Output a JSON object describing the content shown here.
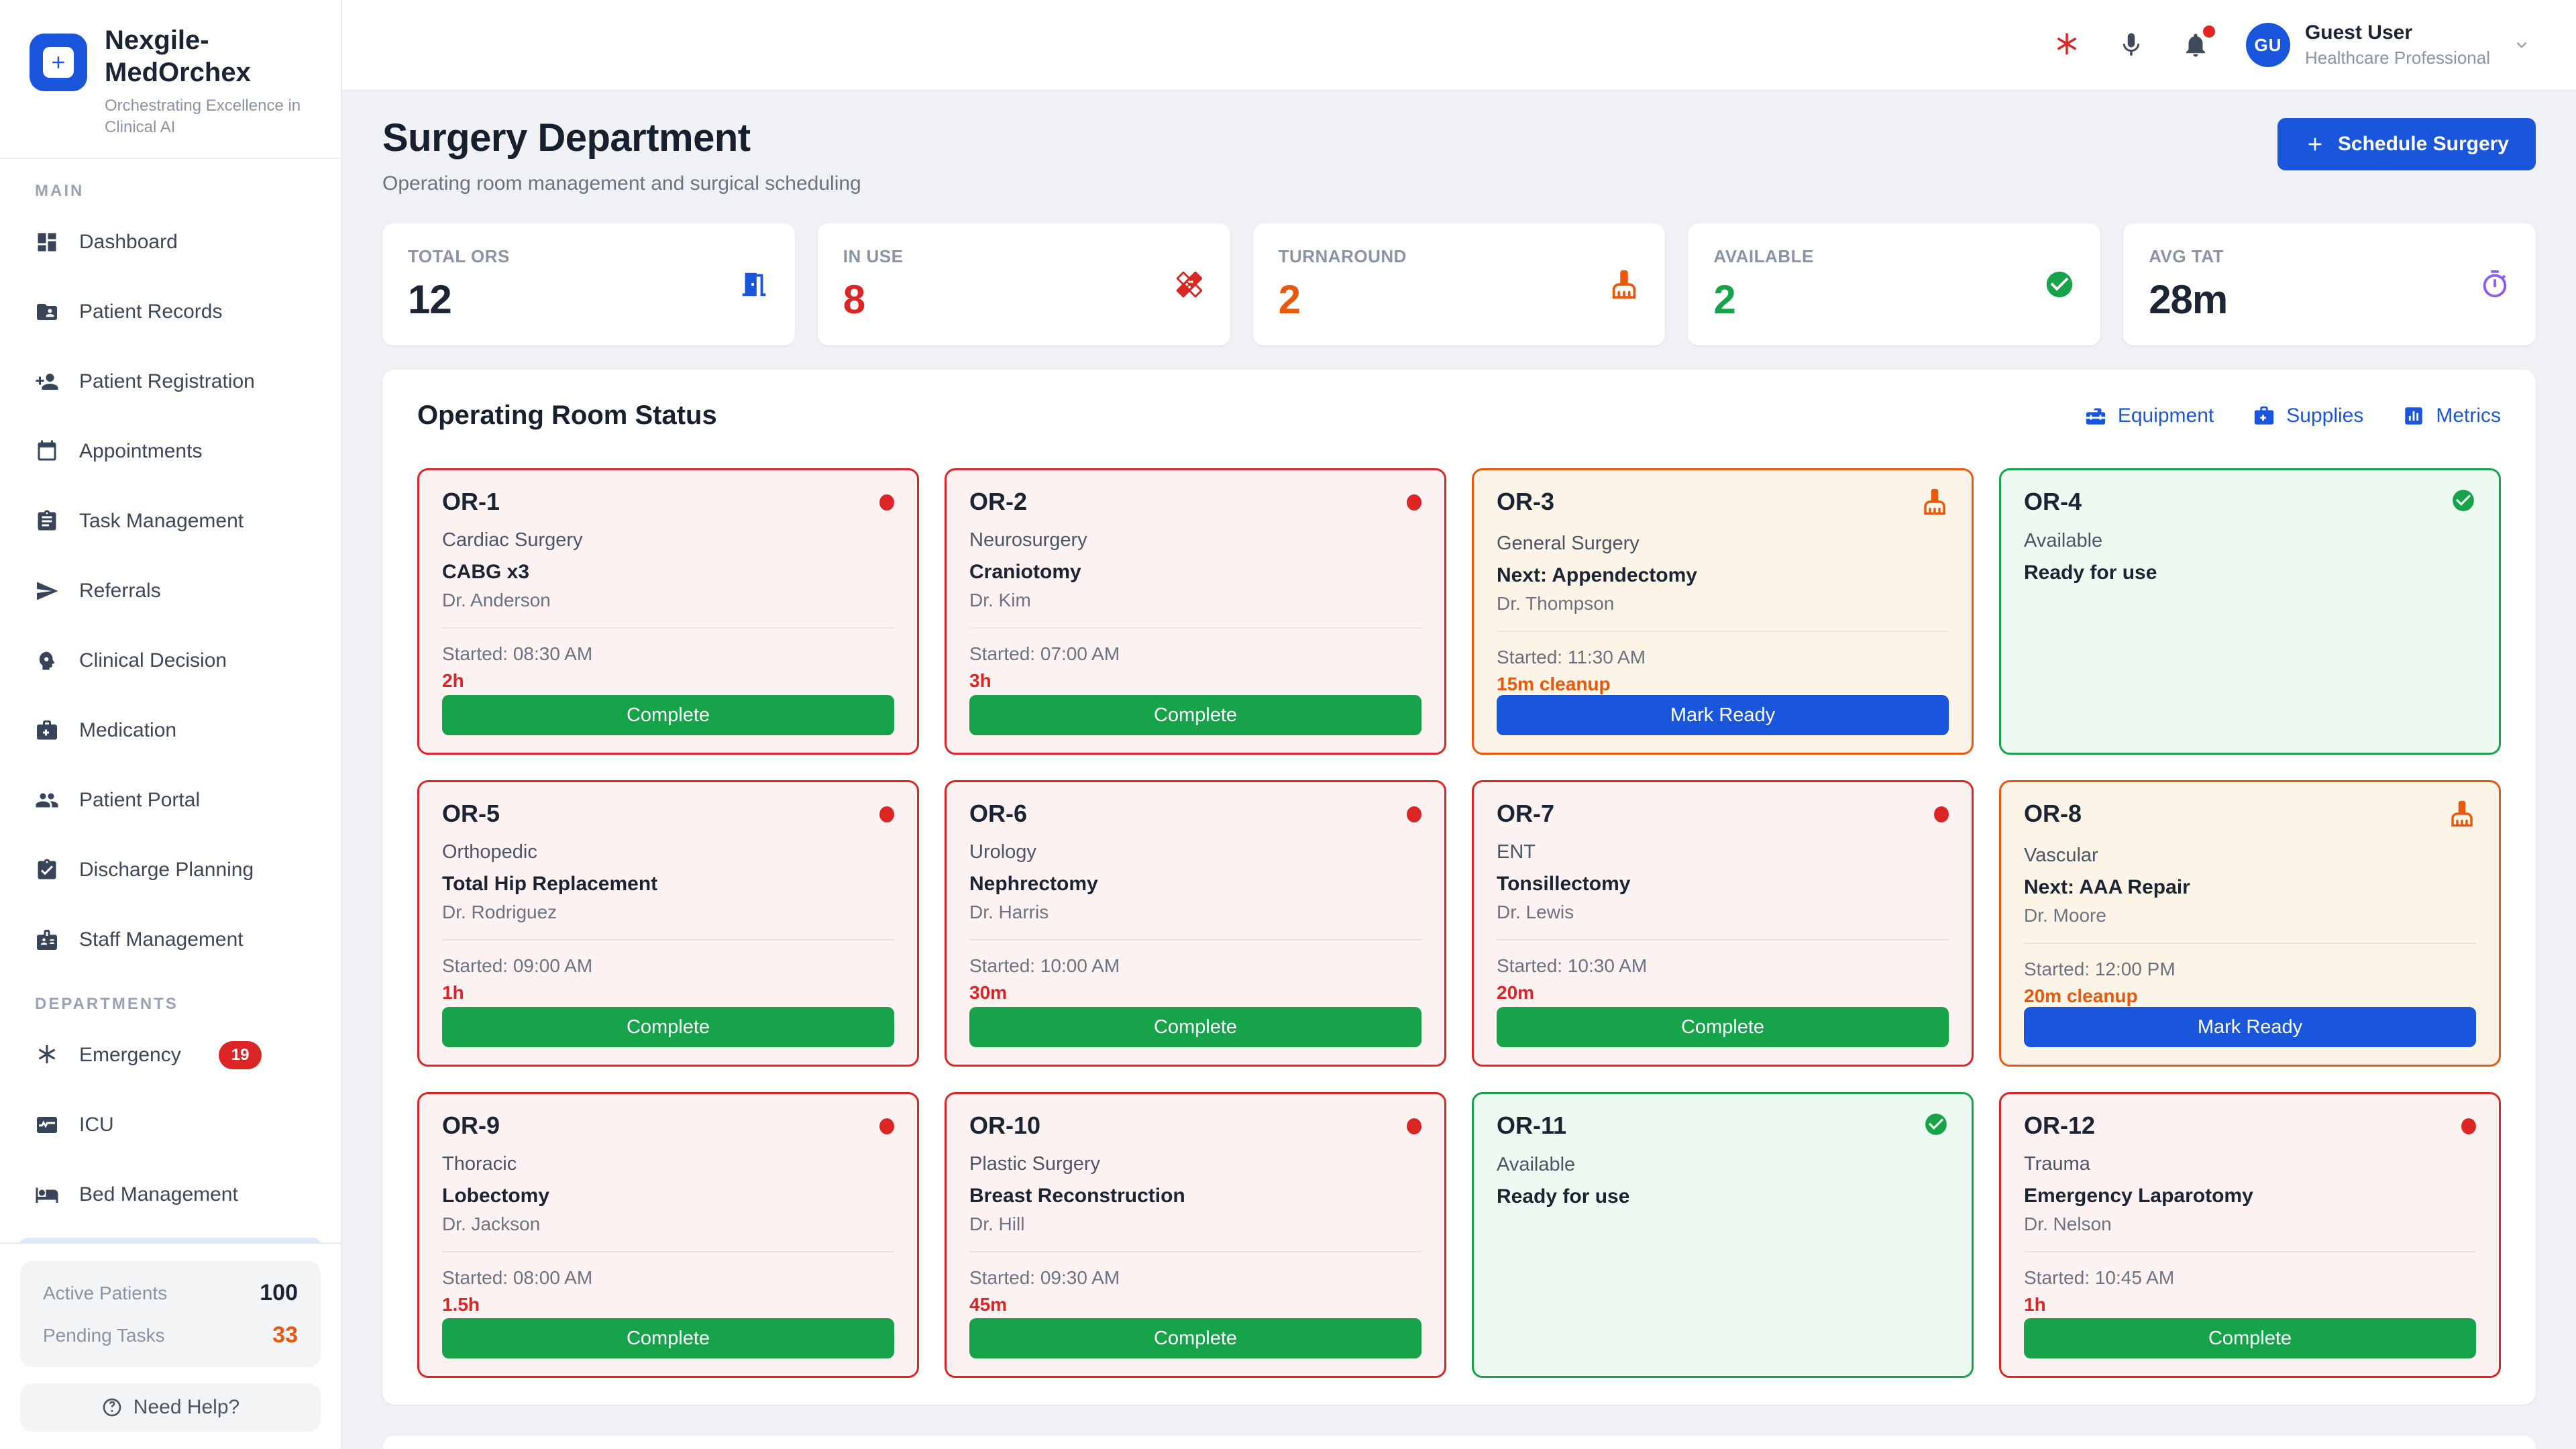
{
  "brand": {
    "name": "Nexgile-MedOrchex",
    "tagline": "Orchestrating Excellence in Clinical AI"
  },
  "sidebar": {
    "sections": [
      {
        "label": "MAIN",
        "items": [
          {
            "icon": "dashboard",
            "label": "Dashboard"
          },
          {
            "icon": "folder-user",
            "label": "Patient Records"
          },
          {
            "icon": "person-add",
            "label": "Patient Registration"
          },
          {
            "icon": "calendar",
            "label": "Appointments"
          },
          {
            "icon": "clipboard",
            "label": "Task Management"
          },
          {
            "icon": "send",
            "label": "Referrals"
          },
          {
            "icon": "head-gear",
            "label": "Clinical Decision"
          },
          {
            "icon": "medkit",
            "label": "Medication"
          },
          {
            "icon": "people",
            "label": "Patient Portal"
          },
          {
            "icon": "clipboard-check",
            "label": "Discharge Planning"
          },
          {
            "icon": "id-badge",
            "label": "Staff Management"
          }
        ]
      },
      {
        "label": "DEPARTMENTS",
        "items": [
          {
            "icon": "asterisk",
            "label": "Emergency",
            "badge": "19"
          },
          {
            "icon": "monitor-pulse",
            "label": "ICU"
          },
          {
            "icon": "bed",
            "label": "Bed Management"
          }
        ]
      }
    ],
    "summary": [
      {
        "label": "Active Patients",
        "value": "100",
        "value_color": "#1c2534"
      },
      {
        "label": "Pending Tasks",
        "value": "33",
        "value_color": "#ea580c"
      }
    ],
    "help_label": "Need Help?"
  },
  "topbar": {
    "user_initials": "GU",
    "user_name": "Guest User",
    "user_role": "Healthcare Professional"
  },
  "page": {
    "title": "Surgery Department",
    "subtitle": "Operating room management and surgical scheduling",
    "schedule_button": "Schedule Surgery"
  },
  "stats_cards": [
    {
      "label": "TOTAL ORS",
      "value": "12",
      "value_color": "#1c2534",
      "icon": "door",
      "icon_color": "#1a56db"
    },
    {
      "label": "IN USE",
      "value": "8",
      "value_color": "#dc2626",
      "icon": "healing",
      "icon_color": "#dc2626"
    },
    {
      "label": "TURNAROUND",
      "value": "2",
      "value_color": "#ea580c",
      "icon": "broom",
      "icon_color": "#ea580c"
    },
    {
      "label": "AVAILABLE",
      "value": "2",
      "value_color": "#16a34a",
      "icon": "check-circle",
      "icon_color": "#16a34a"
    },
    {
      "label": "AVG TAT",
      "value": "28m",
      "value_color": "#1c2534",
      "icon": "timer",
      "icon_color": "#8b5cf6"
    }
  ],
  "or_status": {
    "title": "Operating Room Status",
    "links": [
      {
        "icon": "toolbox",
        "label": "Equipment"
      },
      {
        "icon": "medical-bag",
        "label": "Supplies"
      },
      {
        "icon": "analytics",
        "label": "Metrics"
      }
    ],
    "rooms": [
      {
        "id": "OR-1",
        "status": "in-use",
        "specialty": "Cardiac Surgery",
        "procedure": "CABG x3",
        "doctor": "Dr. Anderson",
        "started": "Started: 08:30 AM",
        "duration": "2h",
        "action": "Complete"
      },
      {
        "id": "OR-2",
        "status": "in-use",
        "specialty": "Neurosurgery",
        "procedure": "Craniotomy",
        "doctor": "Dr. Kim",
        "started": "Started: 07:00 AM",
        "duration": "3h",
        "action": "Complete"
      },
      {
        "id": "OR-3",
        "status": "cleaning",
        "specialty": "General Surgery",
        "procedure": "Next: Appendectomy",
        "doctor": "Dr. Thompson",
        "started": "Started: 11:30 AM",
        "duration": "15m cleanup",
        "action": "Mark Ready"
      },
      {
        "id": "OR-4",
        "status": "available",
        "specialty": "Available",
        "procedure": "Ready for use"
      },
      {
        "id": "OR-5",
        "status": "in-use",
        "specialty": "Orthopedic",
        "procedure": "Total Hip Replacement",
        "doctor": "Dr. Rodriguez",
        "started": "Started: 09:00 AM",
        "duration": "1h",
        "action": "Complete"
      },
      {
        "id": "OR-6",
        "status": "in-use",
        "specialty": "Urology",
        "procedure": "Nephrectomy",
        "doctor": "Dr. Harris",
        "started": "Started: 10:00 AM",
        "duration": "30m",
        "action": "Complete"
      },
      {
        "id": "OR-7",
        "status": "in-use",
        "specialty": "ENT",
        "procedure": "Tonsillectomy",
        "doctor": "Dr. Lewis",
        "started": "Started: 10:30 AM",
        "duration": "20m",
        "action": "Complete"
      },
      {
        "id": "OR-8",
        "status": "cleaning",
        "specialty": "Vascular",
        "procedure": "Next: AAA Repair",
        "doctor": "Dr. Moore",
        "started": "Started: 12:00 PM",
        "duration": "20m cleanup",
        "action": "Mark Ready"
      },
      {
        "id": "OR-9",
        "status": "in-use",
        "specialty": "Thoracic",
        "procedure": "Lobectomy",
        "doctor": "Dr. Jackson",
        "started": "Started: 08:00 AM",
        "duration": "1.5h",
        "action": "Complete"
      },
      {
        "id": "OR-10",
        "status": "in-use",
        "specialty": "Plastic Surgery",
        "procedure": "Breast Reconstruction",
        "doctor": "Dr. Hill",
        "started": "Started: 09:30 AM",
        "duration": "45m",
        "action": "Complete"
      },
      {
        "id": "OR-11",
        "status": "available",
        "specialty": "Available",
        "procedure": "Ready for use"
      },
      {
        "id": "OR-12",
        "status": "in-use",
        "specialty": "Trauma",
        "procedure": "Emergency Laparotomy",
        "doctor": "Dr. Nelson",
        "started": "Started: 10:45 AM",
        "duration": "1h",
        "action": "Complete"
      }
    ]
  }
}
